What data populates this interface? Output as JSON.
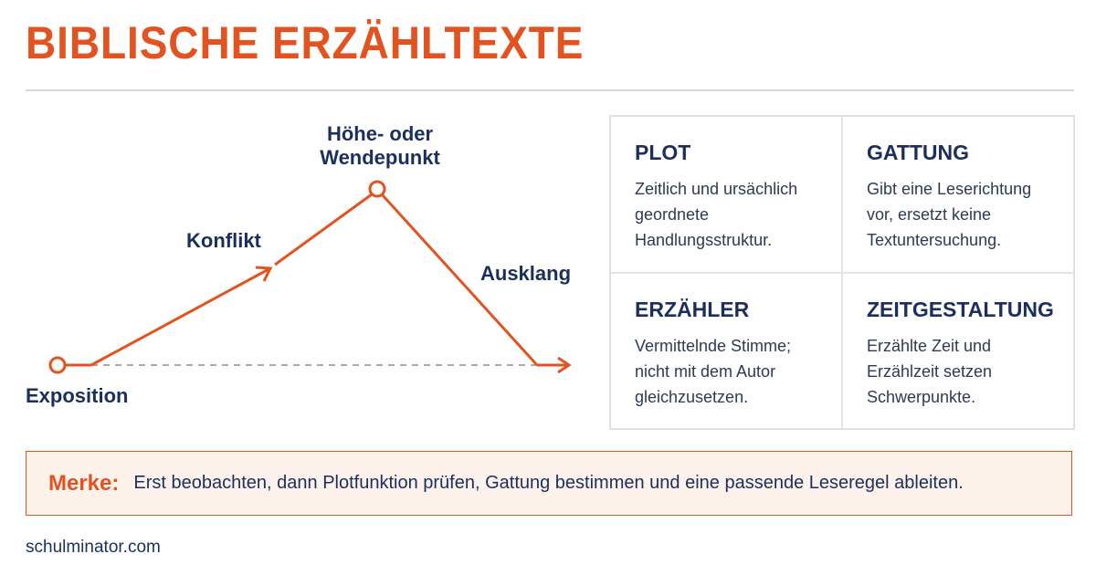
{
  "header": {
    "title": "BIBLISCHE ERZÄHLTEXTE"
  },
  "diagram": {
    "labels": {
      "start": "Exposition",
      "rise": "Konflikt",
      "peak": "Höhe- oder Wendepunkt",
      "fall": "Ausklang"
    }
  },
  "grid": {
    "cells": [
      {
        "title": "PLOT",
        "text": "Zeitlich und ursächlich geordnete Handlungsstruktur."
      },
      {
        "title": "GATTUNG",
        "text": "Gibt eine Leserichtung vor, ersetzt keine Textuntersuchung."
      },
      {
        "title": "ERZÄHLER",
        "text": "Vermittelnde Stimme; nicht mit dem Autor gleichzusetzen."
      },
      {
        "title": "ZEITGESTALTUNG",
        "text": "Erzählte Zeit und Erzählzeit setzen Schwerpunkte."
      }
    ]
  },
  "note": {
    "label": "Merke:",
    "text": "Erst beobachten, dann Plotfunktion prüfen, Gattung bestimmen und eine passende Leseregel ableiten."
  },
  "footer": {
    "source": "schulminator.com"
  }
}
